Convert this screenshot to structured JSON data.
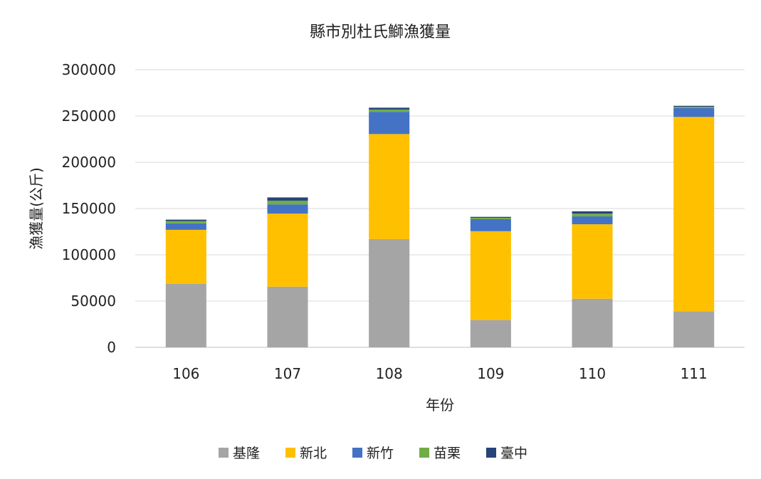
{
  "chart_data": {
    "type": "bar",
    "stacked": true,
    "title": "縣市別杜氏鰤漁獲量",
    "xlabel": "年份",
    "ylabel": "漁獲量(公斤)",
    "categories": [
      "106",
      "107",
      "108",
      "109",
      "110",
      "111"
    ],
    "ylim": [
      0,
      300000
    ],
    "yticks": [
      0,
      50000,
      100000,
      150000,
      200000,
      250000,
      300000
    ],
    "ytick_labels": [
      "0",
      "50000",
      "100000",
      "150000",
      "200000",
      "250000",
      "300000"
    ],
    "grid": true,
    "legend_position": "bottom",
    "series": [
      {
        "name": "基隆",
        "color": "#a5a5a5",
        "values": [
          68500,
          65500,
          117000,
          29500,
          52500,
          39000
        ]
      },
      {
        "name": "新北",
        "color": "#ffc000",
        "values": [
          58500,
          79000,
          113500,
          96000,
          80500,
          210000
        ]
      },
      {
        "name": "新竹",
        "color": "#4472c4",
        "values": [
          7000,
          10000,
          24000,
          13000,
          8500,
          9500
        ]
      },
      {
        "name": "苗栗",
        "color": "#70ad47",
        "values": [
          2500,
          4000,
          2500,
          1500,
          3000,
          1500
        ]
      },
      {
        "name": "臺中",
        "color": "#264478",
        "values": [
          1500,
          3500,
          2000,
          1000,
          2500,
          1000
        ]
      }
    ]
  }
}
